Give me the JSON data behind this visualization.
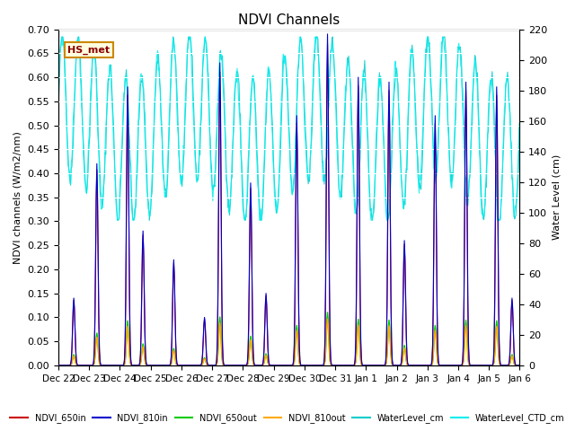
{
  "title": "NDVI Channels",
  "ylabel_left": "NDVI channels (W/m2/nm)",
  "ylabel_right": "Water Level (cm)",
  "ylim_left": [
    0.0,
    0.7
  ],
  "ylim_right": [
    0,
    220
  ],
  "yticks_left": [
    0.0,
    0.05,
    0.1,
    0.15,
    0.2,
    0.25,
    0.3,
    0.35,
    0.4,
    0.45,
    0.5,
    0.55,
    0.6,
    0.65,
    0.7
  ],
  "yticks_right": [
    0,
    20,
    40,
    60,
    80,
    100,
    120,
    140,
    160,
    180,
    200,
    220
  ],
  "colors": {
    "NDVI_650in": "#cc0000",
    "NDVI_810in": "#0000cc",
    "NDVI_650out": "#00cc00",
    "NDVI_810out": "#ffaa00",
    "WaterLevel_cm": "#00cccc",
    "WaterLevel_CTD_cm": "#00eeee"
  },
  "hs_met_label": "HS_met",
  "background_color": "#e8e8e8",
  "figsize": [
    6.4,
    4.8
  ],
  "dpi": 100
}
